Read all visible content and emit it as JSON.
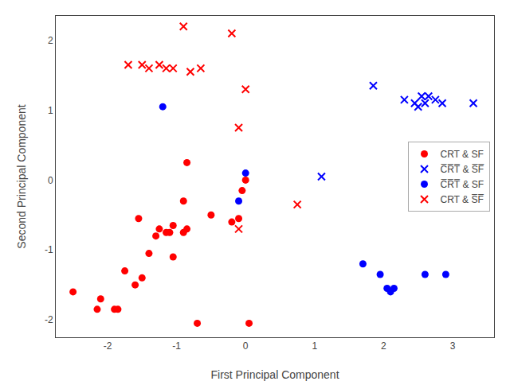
{
  "chart_data": {
    "type": "scatter",
    "xlabel": "First Principal Component",
    "ylabel": "Second Principal Component",
    "xlim": [
      -2.75,
      3.6
    ],
    "ylim": [
      -2.25,
      2.35
    ],
    "xticks": [
      -2,
      -1,
      0,
      1,
      2,
      3
    ],
    "yticks": [
      -2,
      -1,
      0,
      1,
      2
    ],
    "grid": false,
    "legend": "right",
    "series": [
      {
        "name": "CRT & SF",
        "color": "red",
        "marker": "o",
        "x": [
          -2.5,
          -2.15,
          -2.1,
          -1.9,
          -1.85,
          -1.75,
          -1.6,
          -1.55,
          -1.5,
          -1.4,
          -1.3,
          -1.25,
          -1.15,
          -1.1,
          -1.05,
          -1.05,
          -0.9,
          -0.9,
          -0.85,
          -0.85,
          -0.7,
          -0.5,
          -0.2,
          -0.1,
          -0.05,
          0.0,
          0.05
        ],
        "y": [
          -1.6,
          -1.85,
          -1.7,
          -1.85,
          -1.85,
          -1.3,
          -1.5,
          -0.55,
          -1.4,
          -1.05,
          -0.8,
          -0.7,
          -0.75,
          -0.75,
          -0.65,
          -1.1,
          -0.3,
          -0.75,
          -0.7,
          0.25,
          -2.05,
          -0.5,
          -0.6,
          -0.55,
          -0.15,
          0.0,
          -2.05
        ]
      },
      {
        "name": "C̅R̅T̅ & S̅F̅",
        "color": "blue",
        "marker": "x",
        "x": [
          1.1,
          1.85,
          2.3,
          2.45,
          2.5,
          2.55,
          2.6,
          2.65,
          2.75,
          2.85,
          3.3
        ],
        "y": [
          0.05,
          1.35,
          1.15,
          1.1,
          1.05,
          1.2,
          1.1,
          1.2,
          1.15,
          1.1,
          1.1
        ]
      },
      {
        "name": "C̅R̅T̅ & SF",
        "color": "blue",
        "marker": "o",
        "x": [
          -1.2,
          -0.1,
          0.0,
          1.7,
          1.95,
          2.05,
          2.1,
          2.15,
          2.6,
          2.9
        ],
        "y": [
          1.05,
          -0.3,
          0.1,
          -1.2,
          -1.35,
          -1.55,
          -1.6,
          -1.55,
          -1.35,
          -1.35
        ]
      },
      {
        "name": "CRT & S̅F̅",
        "color": "red",
        "marker": "x",
        "x": [
          -1.7,
          -1.5,
          -1.4,
          -1.25,
          -1.15,
          -1.05,
          -0.9,
          -0.8,
          -0.65,
          -0.2,
          -0.1,
          0.75,
          0.0,
          -0.1
        ],
        "y": [
          1.65,
          1.65,
          1.6,
          1.65,
          1.6,
          1.6,
          2.2,
          1.55,
          1.6,
          2.1,
          0.75,
          -0.35,
          1.3,
          -0.7
        ]
      }
    ]
  }
}
